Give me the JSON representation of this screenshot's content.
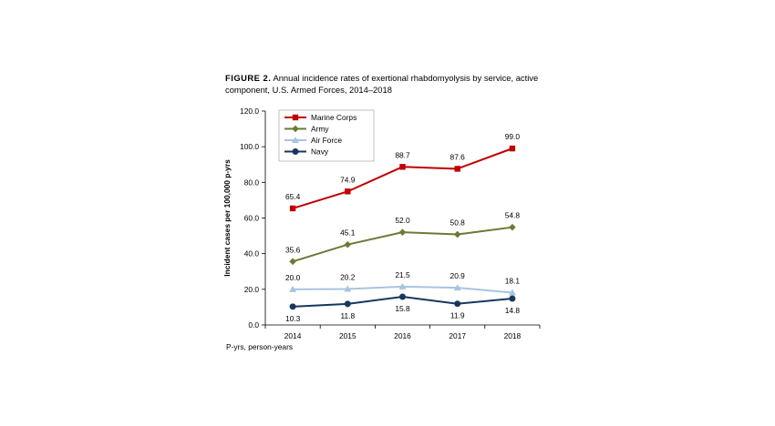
{
  "figure": {
    "label": "FIGURE 2.",
    "caption": "Annual incidence rates of exertional rhabdomyolysis by service, active component, U.S. Armed Forces, 2014–2018"
  },
  "footnote": "P-yrs, person-years",
  "chart_data": {
    "type": "line",
    "title": "Annual incidence rates of exertional rhabdomyolysis by service, active component, U.S. Armed Forces, 2014–2018",
    "xlabel": "",
    "ylabel": "Incident cases per 100,000 p-yrs",
    "categories": [
      "2014",
      "2015",
      "2016",
      "2017",
      "2018"
    ],
    "ylim": [
      0,
      120
    ],
    "yticks": [
      "0.0",
      "20.0",
      "40.0",
      "60.0",
      "80.0",
      "100.0",
      "120.0"
    ],
    "grid": false,
    "legend_position": "top-left",
    "series": [
      {
        "name": "Marine Corps",
        "color": "#c00000",
        "marker": "square",
        "values": [
          65.4,
          74.9,
          88.7,
          87.6,
          99.0
        ],
        "labels": [
          "65.4",
          "74.9",
          "88.7",
          "87.6",
          "99.0"
        ]
      },
      {
        "name": "Army",
        "color": "#6b7a35",
        "marker": "diamond",
        "values": [
          35.6,
          45.1,
          52.0,
          50.8,
          54.8
        ],
        "labels": [
          "35.6",
          "45.1",
          "52.0",
          "50.8",
          "54.8"
        ]
      },
      {
        "name": "Air Force",
        "color": "#a8c4e0",
        "marker": "triangle",
        "values": [
          20.0,
          20.2,
          21.5,
          20.9,
          18.1
        ],
        "labels": [
          "20.0",
          "20.2",
          "21.5",
          "20.9",
          "18.1"
        ]
      },
      {
        "name": "Navy",
        "color": "#17375e",
        "marker": "circle",
        "values": [
          10.3,
          11.8,
          15.8,
          11.9,
          14.8
        ],
        "labels": [
          "10.3",
          "11.8",
          "15.8",
          "11.9",
          "14.8"
        ]
      }
    ]
  }
}
